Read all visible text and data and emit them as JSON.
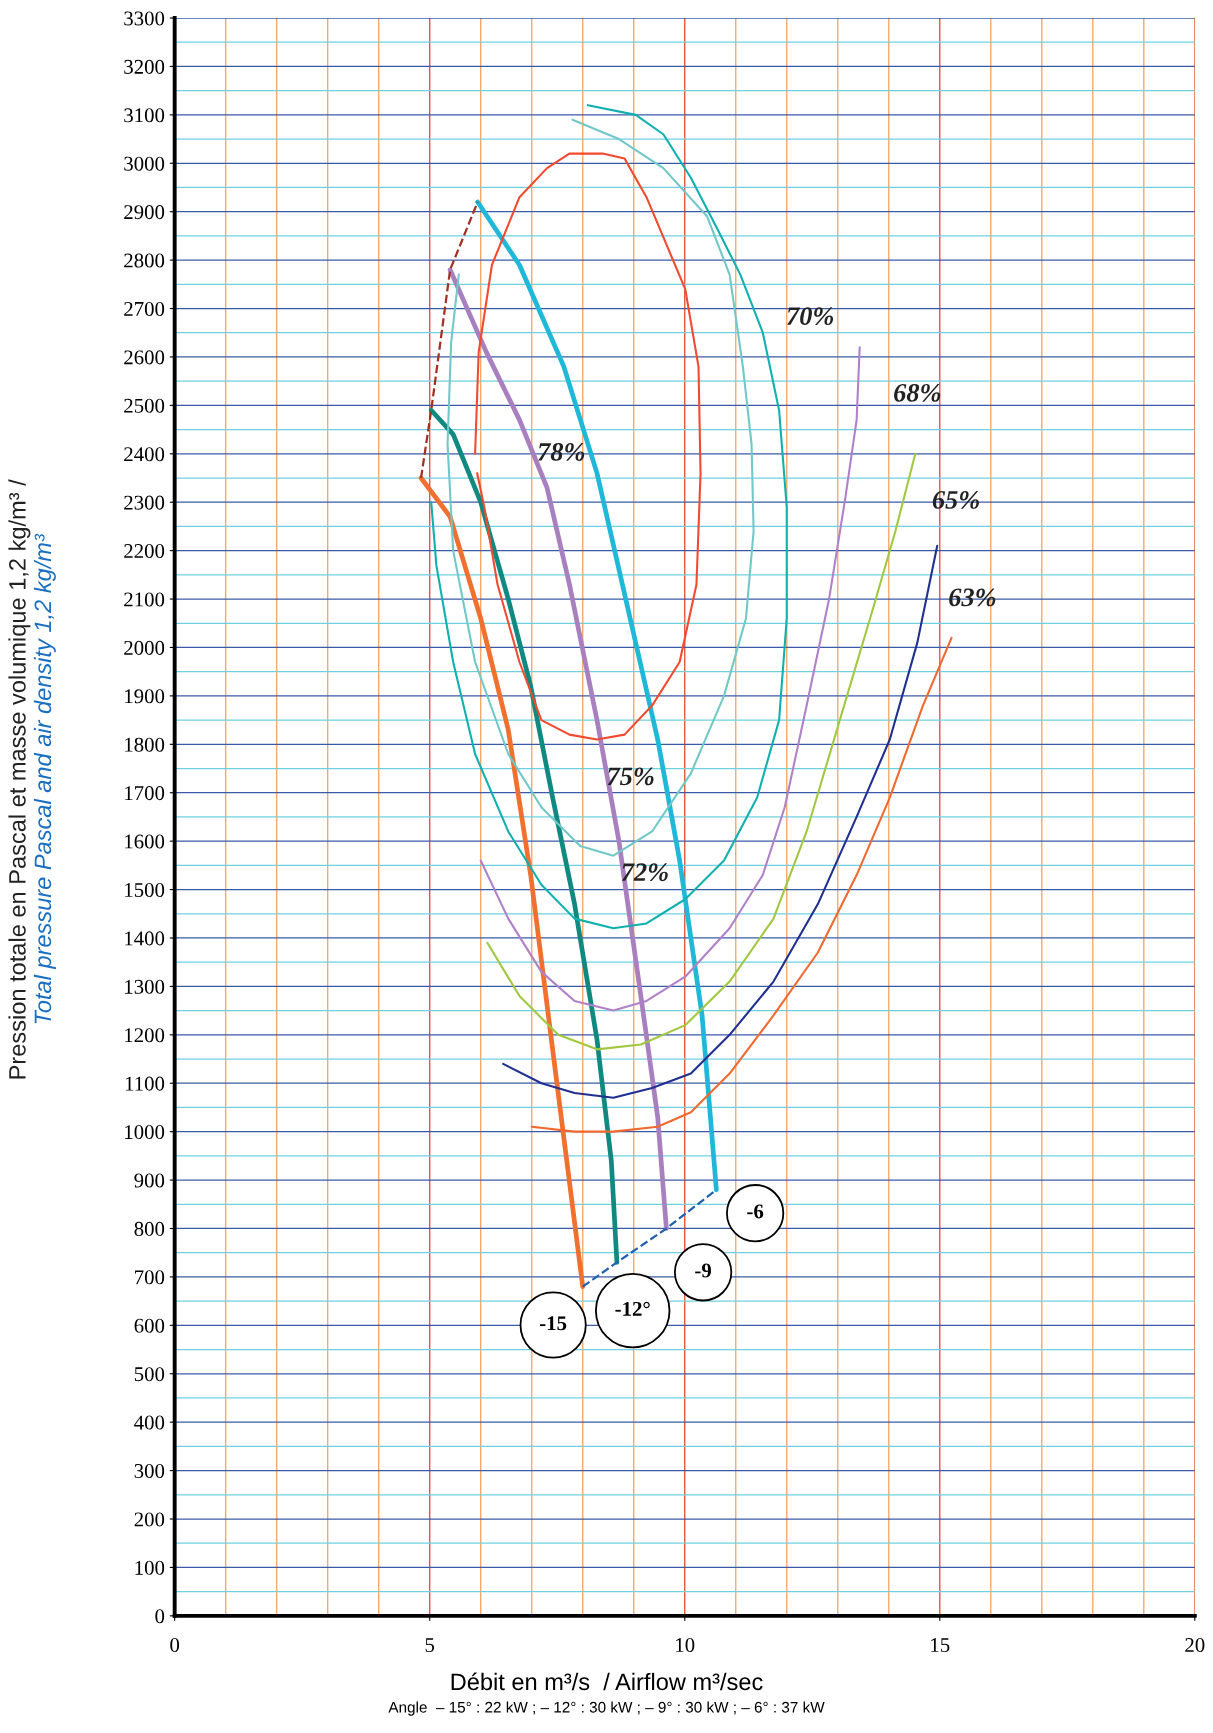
{
  "chart_data": {
    "type": "line",
    "xlabel": "Débit en m³/s  / Airflow m³/sec",
    "ylabel": "Pression totale en Pascal et masse volumique 1,2 kg/m³ /\nTotal pressure Pascal and air density 1,2 kg/m³",
    "xlim": [
      0,
      20
    ],
    "xticks": [
      0,
      {
        "value": 1,
        "label": null
      },
      {
        "value": 2,
        "label": null
      },
      {
        "value": 3,
        "label": null
      },
      {
        "value": 4,
        "label": null
      },
      5,
      {
        "value": 6,
        "label": null
      },
      {
        "value": 7,
        "label": null
      },
      {
        "value": 8,
        "label": null
      },
      {
        "value": 9,
        "label": null
      },
      10,
      {
        "value": 11,
        "label": null
      },
      {
        "value": 12,
        "label": null
      },
      {
        "value": 13,
        "label": null
      },
      {
        "value": 14,
        "label": null
      },
      15,
      {
        "value": 16,
        "label": null
      },
      {
        "value": 17,
        "label": null
      },
      {
        "value": 18,
        "label": null
      },
      {
        "value": 19,
        "label": null
      },
      20
    ],
    "ylim": [
      0,
      3300
    ],
    "yticks": [
      0,
      {
        "value": 50,
        "label": null
      },
      100,
      {
        "value": 150,
        "label": null
      },
      200,
      {
        "value": 250,
        "label": null
      },
      300,
      {
        "value": 350,
        "label": null
      },
      400,
      {
        "value": 450,
        "label": null
      },
      500,
      {
        "value": 550,
        "label": null
      },
      600,
      {
        "value": 650,
        "label": null
      },
      700,
      {
        "value": 750,
        "label": null
      },
      800,
      {
        "value": 850,
        "label": null
      },
      900,
      {
        "value": 950,
        "label": null
      },
      1000,
      {
        "value": 1050,
        "label": null
      },
      1100,
      {
        "value": 1150,
        "label": null
      },
      1200,
      {
        "value": 1250,
        "label": null
      },
      1300,
      {
        "value": 1350,
        "label": null
      },
      1400,
      {
        "value": 1450,
        "label": null
      },
      1500,
      {
        "value": 1550,
        "label": null
      },
      1600,
      {
        "value": 1650,
        "label": null
      },
      1700,
      {
        "value": 1750,
        "label": null
      },
      1800,
      {
        "value": 1850,
        "label": null
      },
      1900,
      {
        "value": 1950,
        "label": null
      },
      2000,
      {
        "value": 2050,
        "label": null
      },
      2100,
      {
        "value": 2150,
        "label": null
      },
      2200,
      {
        "value": 2250,
        "label": null
      },
      2300,
      {
        "value": 2350,
        "label": null
      },
      2400,
      {
        "value": 2450,
        "label": null
      },
      2500,
      {
        "value": 2550,
        "label": null
      },
      2600,
      {
        "value": 2650,
        "label": null
      },
      2700,
      {
        "value": 2750,
        "label": null
      },
      2800,
      {
        "value": 2850,
        "label": null
      },
      2900,
      {
        "value": 2950,
        "label": null
      },
      3000,
      {
        "value": 3050,
        "label": null
      },
      3100,
      {
        "value": 3150,
        "label": null
      },
      3200,
      {
        "value": 3250,
        "label": null
      },
      3300
    ],
    "grid": true,
    "marker": "none",
    "series": [
      {
        "color": "#f07030",
        "x": [
          4.83,
          5.4,
          6.0,
          6.54,
          6.98,
          7.41,
          8.0
        ],
        "values": [
          2350,
          2270,
          2060,
          1830,
          1530,
          1170,
          680
        ]
      },
      {
        "color": "#108a80",
        "x": [
          5.03,
          5.46,
          6.0,
          6.54,
          6.98,
          7.41,
          7.84,
          8.28,
          8.56,
          8.67
        ],
        "values": [
          2490,
          2440,
          2300,
          2100,
          1920,
          1690,
          1470,
          1190,
          940,
          730
        ]
      },
      {
        "color": "#a880c0",
        "x": [
          5.4,
          6.11,
          6.76,
          7.3,
          7.74,
          8.28,
          8.71,
          9.14,
          9.47,
          9.64
        ],
        "values": [
          2780,
          2610,
          2470,
          2330,
          2130,
          1850,
          1600,
          1280,
          1030,
          800
        ]
      },
      {
        "color": "#20b8d8",
        "x": [
          5.94,
          6.76,
          7.63,
          8.28,
          8.93,
          9.47,
          9.9,
          10.34,
          10.62
        ],
        "values": [
          2920,
          2790,
          2580,
          2360,
          2060,
          1810,
          1560,
          1240,
          880
        ]
      },
      {
        "color": "#a03020",
        "line_style": "dashed",
        "x": [
          4.83,
          5.03,
          5.4,
          5.94
        ],
        "values": [
          2350,
          2490,
          2780,
          2920
        ]
      },
      {
        "color": "#2060b0",
        "line_style": "dashed",
        "x": [
          8.0,
          8.67,
          9.64,
          10.62
        ],
        "values": [
          680,
          730,
          800,
          880
        ]
      },
      {
        "color": "#f04a30",
        "x": [
          5.89,
          5.96,
          6.22,
          6.76,
          7.3,
          7.74,
          8.39,
          8.82,
          9.25,
          9.69,
          10.01,
          10.27,
          10.31,
          10.23,
          9.9,
          9.36,
          8.82,
          8.28,
          7.74,
          7.19,
          6.76,
          6.33,
          6.07,
          5.93
        ],
        "values": [
          2400,
          2610,
          2790,
          2930,
          2990,
          3020,
          3020,
          3010,
          2930,
          2820,
          2740,
          2580,
          2360,
          2130,
          1970,
          1880,
          1820,
          1810,
          1820,
          1850,
          1970,
          2130,
          2290,
          2360
        ]
      },
      {
        "color": "#70c8c8",
        "x": [
          7.8,
          8.71,
          9.58,
          10.44,
          10.88,
          11.14,
          11.31,
          11.35,
          11.2,
          10.77,
          10.12,
          9.36,
          8.6,
          7.95,
          7.19,
          6.54,
          5.89,
          5.46,
          5.35,
          5.42,
          5.57
        ],
        "values": [
          3090,
          3050,
          2990,
          2890,
          2770,
          2580,
          2420,
          2240,
          2060,
          1900,
          1740,
          1620,
          1570,
          1590,
          1670,
          1780,
          1970,
          2200,
          2420,
          2630,
          2770
        ]
      },
      {
        "color": "#10b0b0",
        "x": [
          8.1,
          9.04,
          9.58,
          10.12,
          10.66,
          11.09,
          11.53,
          11.85,
          12.0,
          12.0,
          11.85,
          11.42,
          10.77,
          10.01,
          9.25,
          8.6,
          7.84,
          7.19,
          6.54,
          5.89,
          5.46,
          5.13,
          5.03
        ],
        "values": [
          3120,
          3100,
          3060,
          2970,
          2860,
          2770,
          2650,
          2490,
          2290,
          2060,
          1850,
          1690,
          1560,
          1480,
          1430,
          1420,
          1440,
          1510,
          1620,
          1780,
          1970,
          2170,
          2300
        ]
      },
      {
        "color": "#b080c8",
        "x": [
          6.0,
          6.54,
          7.19,
          7.84,
          8.6,
          9.25,
          10.01,
          10.88,
          11.53,
          11.96,
          12.39,
          12.83,
          13.15,
          13.37,
          13.43
        ],
        "values": [
          1560,
          1440,
          1330,
          1270,
          1250,
          1270,
          1320,
          1420,
          1530,
          1670,
          1880,
          2100,
          2310,
          2470,
          2620
        ]
      },
      {
        "color": "#a0c840",
        "x": [
          6.13,
          6.76,
          7.52,
          8.28,
          9.14,
          10.01,
          10.88,
          11.74,
          12.39,
          13.04,
          13.69,
          14.13,
          14.52
        ],
        "values": [
          1390,
          1280,
          1200,
          1170,
          1180,
          1220,
          1310,
          1440,
          1620,
          1850,
          2080,
          2240,
          2400
        ]
      },
      {
        "color": "#203090",
        "x": [
          6.44,
          7.19,
          7.84,
          8.6,
          9.36,
          10.12,
          10.88,
          11.74,
          12.61,
          13.37,
          14.02,
          14.56,
          14.95
        ],
        "values": [
          1140,
          1100,
          1080,
          1070,
          1090,
          1120,
          1200,
          1310,
          1470,
          1650,
          1810,
          2010,
          2210
        ]
      },
      {
        "color": "#f06a30",
        "x": [
          7.0,
          7.84,
          8.6,
          9.47,
          10.12,
          10.88,
          11.74,
          12.61,
          13.37,
          14.02,
          14.67,
          15.23
        ],
        "values": [
          1010,
          1000,
          1000,
          1010,
          1040,
          1120,
          1240,
          1370,
          1530,
          1690,
          1880,
          2020
        ]
      }
    ],
    "annotations": [
      "78%",
      "75%",
      "72%",
      "70%",
      "68%",
      "65%",
      "63%",
      "-15",
      "-12°",
      "-9",
      "-6",
      "Angle  – 15° : 22 kW ; – 12° : 30 kW ; – 9° : 30 kW ; – 6° : 37 kW"
    ]
  }
}
